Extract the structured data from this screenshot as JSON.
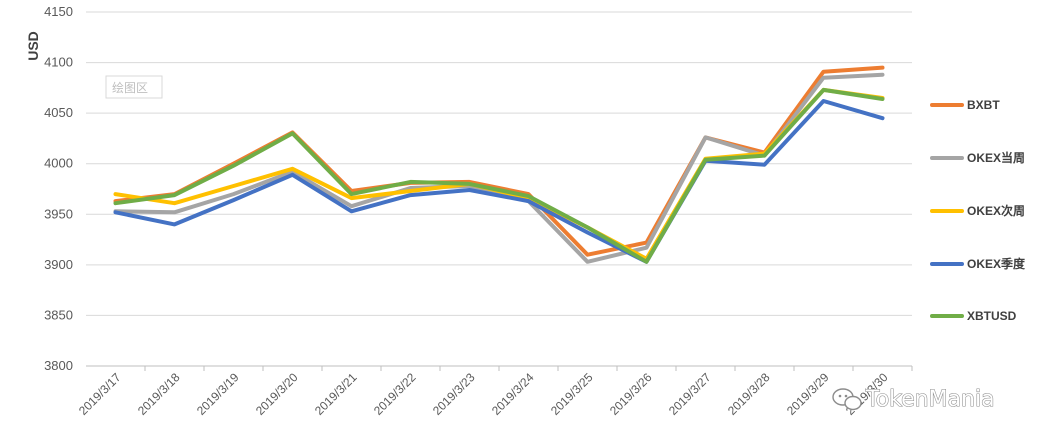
{
  "chart_data": {
    "type": "line",
    "title": "",
    "ylabel": "USD",
    "xlabel": "",
    "ylim": [
      3800,
      4150
    ],
    "yticks": [
      3800,
      3850,
      3900,
      3950,
      4000,
      4050,
      4100,
      4150
    ],
    "categories": [
      "2019/3/17",
      "2019/3/18",
      "2019/3/19",
      "2019/3/20",
      "2019/3/21",
      "2019/3/22",
      "2019/3/23",
      "2019/3/24",
      "2019/3/25",
      "2019/3/26",
      "2019/3/27",
      "2019/3/28",
      "2019/3/29",
      "2019/3/30"
    ],
    "grid": "horizontal",
    "legend_position": "right",
    "series": [
      {
        "name": "BXBT",
        "color": "#ED7D31",
        "values": [
          3963,
          3970,
          4000,
          4031,
          3973,
          3981,
          3982,
          3970,
          3910,
          3922,
          4026,
          4011,
          4091,
          4095
        ]
      },
      {
        "name": "OKEX当周",
        "color": "#A5A5A5",
        "values": [
          3953,
          3952,
          3970,
          3992,
          3958,
          3976,
          3978,
          3963,
          3903,
          3917,
          4026,
          4008,
          4085,
          4088
        ]
      },
      {
        "name": "OKEX次周",
        "color": "#FFC000",
        "values": [
          3970,
          3961,
          3978,
          3995,
          3966,
          3973,
          3980,
          3966,
          3937,
          3906,
          4005,
          4010,
          4073,
          4065
        ]
      },
      {
        "name": "OKEX季度",
        "color": "#4472C4",
        "values": [
          3952,
          3940,
          3964,
          3989,
          3953,
          3969,
          3974,
          3963,
          3932,
          3903,
          4003,
          3999,
          4062,
          4045
        ]
      },
      {
        "name": "XBTUSD",
        "color": "#70AD47",
        "values": [
          3961,
          3969,
          3998,
          4030,
          3970,
          3982,
          3980,
          3968,
          3937,
          3903,
          4004,
          4008,
          4073,
          4064
        ]
      }
    ]
  },
  "overlay": {
    "plot_area_label": "绘图区",
    "brand": "TokenMania",
    "brand_icon": "wechat-icon"
  }
}
